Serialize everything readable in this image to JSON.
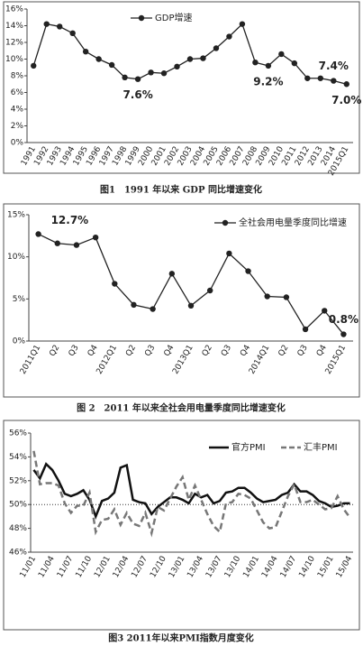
{
  "chart_data": [
    {
      "type": "line",
      "caption": "图1　1991 年以来 GDP 同比增速变化",
      "categories": [
        "1991",
        "1992",
        "1993",
        "1994",
        "1995",
        "1996",
        "1997",
        "1998",
        "1999",
        "2000",
        "2001",
        "2002",
        "2003",
        "2004",
        "2005",
        "2006",
        "2007",
        "2008",
        "2009",
        "2010",
        "2011",
        "2012",
        "2013",
        "2014",
        "2015Q1"
      ],
      "series": [
        {
          "name": "GDP增速",
          "color": "#222222",
          "marker": true,
          "values": [
            9.2,
            14.2,
            13.9,
            13.1,
            10.9,
            10.0,
            9.3,
            7.8,
            7.6,
            8.4,
            8.3,
            9.1,
            10.0,
            10.1,
            11.3,
            12.7,
            14.2,
            9.6,
            9.2,
            10.6,
            9.5,
            7.7,
            7.7,
            7.4,
            7.0
          ],
          "value_labels": [
            null,
            null,
            null,
            null,
            null,
            null,
            null,
            null,
            "7.6%",
            null,
            null,
            null,
            null,
            null,
            null,
            null,
            null,
            null,
            "9.2%",
            null,
            null,
            null,
            null,
            "7.4%",
            "7.0%"
          ]
        }
      ],
      "ylim": [
        0,
        16
      ],
      "yticks": [
        {
          "value": 0,
          "label": "0%"
        },
        {
          "value": 2,
          "label": "2%"
        },
        {
          "value": 4,
          "label": "4%"
        },
        {
          "value": 6,
          "label": "6%"
        },
        {
          "value": 8,
          "label": "8%"
        },
        {
          "value": 10,
          "label": "10%"
        },
        {
          "value": 12,
          "label": "12%"
        },
        {
          "value": 14,
          "label": "14%"
        },
        {
          "value": 16,
          "label": "16%"
        }
      ]
    },
    {
      "type": "line",
      "caption": "图 2　2011 年以来全社会用电量季度同比增速变化",
      "categories": [
        "2011Q1",
        "Q2",
        "Q3",
        "Q4",
        "2012Q1",
        "Q2",
        "Q3",
        "Q4",
        "2013Q1",
        "Q2",
        "Q3",
        "Q4",
        "2014Q1",
        "Q2",
        "Q3",
        "Q4",
        "2015Q1"
      ],
      "series": [
        {
          "name": "全社会用电量季度同比增速",
          "color": "#222222",
          "marker": true,
          "values": [
            12.7,
            11.6,
            11.4,
            12.3,
            6.8,
            4.3,
            3.8,
            8.0,
            4.2,
            6.0,
            10.4,
            8.3,
            5.3,
            5.2,
            1.4,
            3.6,
            0.8
          ],
          "value_labels": [
            "12.7%",
            null,
            null,
            null,
            null,
            null,
            null,
            null,
            null,
            null,
            null,
            null,
            null,
            null,
            null,
            null,
            "0.8%"
          ]
        }
      ],
      "ylim": [
        0,
        15
      ],
      "yticks": [
        {
          "value": 0,
          "label": "0%"
        },
        {
          "value": 5,
          "label": "5%"
        },
        {
          "value": 10,
          "label": "10%"
        },
        {
          "value": 15,
          "label": "15%"
        }
      ]
    },
    {
      "type": "line",
      "caption": "图3 2011年以来PMI指数月度变化",
      "categories": [
        "11/01",
        null,
        null,
        "11/04",
        null,
        null,
        "11/07",
        null,
        null,
        "11/10",
        null,
        null,
        "12/01",
        null,
        null,
        "12/04",
        null,
        null,
        "12/07",
        null,
        null,
        "12/10",
        null,
        null,
        "13/01",
        null,
        null,
        "13/04",
        null,
        null,
        "13/07",
        null,
        null,
        "13/10",
        null,
        null,
        "14/01",
        null,
        null,
        "14/04",
        null,
        null,
        "14/07",
        null,
        null,
        "14/10",
        null,
        null,
        "15/01",
        null,
        null,
        "15/04"
      ],
      "series": [
        {
          "name": "官方PMI",
          "color": "#111111",
          "dash": false,
          "values": [
            52.9,
            52.2,
            53.4,
            52.9,
            52.0,
            50.9,
            50.7,
            50.9,
            51.2,
            50.4,
            49.0,
            50.3,
            50.5,
            51.0,
            53.1,
            53.3,
            50.4,
            50.2,
            50.1,
            49.2,
            49.8,
            50.2,
            50.6,
            50.6,
            50.4,
            50.1,
            50.9,
            50.6,
            50.8,
            50.1,
            50.3,
            51.0,
            51.1,
            51.4,
            51.4,
            51.0,
            50.5,
            50.2,
            50.3,
            50.4,
            50.8,
            51.0,
            51.7,
            51.1,
            51.1,
            50.8,
            50.3,
            50.1,
            49.8,
            49.9,
            50.1,
            50.1
          ]
        },
        {
          "name": "汇丰PMI",
          "color": "#777777",
          "dash": true,
          "values": [
            54.5,
            51.7,
            51.8,
            51.8,
            51.6,
            50.1,
            49.3,
            49.9,
            49.9,
            51.0,
            47.7,
            48.7,
            48.8,
            49.6,
            48.3,
            49.3,
            48.4,
            48.2,
            49.3,
            47.6,
            49.8,
            49.5,
            50.5,
            51.5,
            52.3,
            50.4,
            51.6,
            50.4,
            49.2,
            48.2,
            47.7,
            50.1,
            50.2,
            50.9,
            50.8,
            50.5,
            49.5,
            48.5,
            48.0,
            48.1,
            49.4,
            50.7,
            51.7,
            50.2,
            50.2,
            50.4,
            50.0,
            49.6,
            49.7,
            50.7,
            49.6,
            48.9
          ]
        }
      ],
      "ylim": [
        46,
        56
      ],
      "hline": 50,
      "yticks": [
        {
          "value": 46,
          "label": "46%"
        },
        {
          "value": 48,
          "label": "48%"
        },
        {
          "value": 50,
          "label": "50%"
        },
        {
          "value": 52,
          "label": "52%"
        },
        {
          "value": 54,
          "label": "54%"
        },
        {
          "value": 56,
          "label": "56%"
        }
      ]
    }
  ]
}
